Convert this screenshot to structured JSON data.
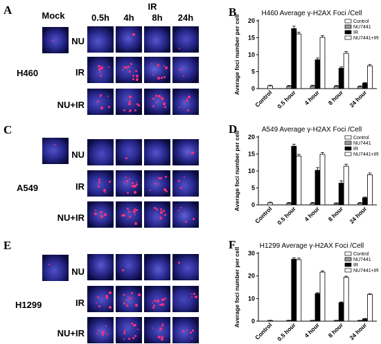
{
  "images": {
    "mock_header": "Mock",
    "ir_header": "IR",
    "time_headers": [
      "0.5h",
      "4h",
      "8h",
      "24h"
    ],
    "treatment_rows": [
      "NU",
      "IR",
      "NU+IR"
    ],
    "panels": [
      {
        "letter": "A",
        "cell_line": "H460"
      },
      {
        "letter": "C",
        "cell_line": "A549"
      },
      {
        "letter": "E",
        "cell_line": "H1299"
      }
    ]
  },
  "chart_data": [
    {
      "letter": "B",
      "type": "bar",
      "title": "H460 Average γ-H2AX Foci /Cell",
      "ylabel": "Average foci number per cell",
      "ylim": [
        0,
        20
      ],
      "yticks": [
        0,
        5,
        10,
        15,
        20
      ],
      "categories": [
        "Control",
        "0.5 hour",
        "4 hour",
        "8 hour",
        "24 hour"
      ],
      "legend": [
        "Control",
        "NU7441",
        "IR",
        "NU7441+IR"
      ],
      "series": [
        {
          "name": "Control",
          "values": [
            0.8,
            null,
            null,
            null,
            null
          ]
        },
        {
          "name": "NU7441",
          "values": [
            null,
            0.7,
            0.8,
            0.7,
            0.6
          ]
        },
        {
          "name": "IR",
          "values": [
            null,
            17.7,
            8.5,
            6.0,
            1.6
          ]
        },
        {
          "name": "NU7441+IR",
          "values": [
            null,
            16.1,
            15.1,
            10.4,
            6.7
          ]
        }
      ],
      "errors": [
        [
          0.2,
          null,
          null,
          null,
          null
        ],
        [
          null,
          0.2,
          0.2,
          0.2,
          0.2
        ],
        [
          null,
          0.7,
          0.5,
          0.4,
          0.2
        ],
        [
          null,
          0.5,
          0.5,
          0.5,
          0.4
        ]
      ]
    },
    {
      "letter": "D",
      "type": "bar",
      "title": "A549 Average γ-H2AX Foci /Cell",
      "ylabel": "Average foci number per cell",
      "ylim": [
        0,
        20
      ],
      "yticks": [
        0,
        5,
        10,
        15,
        20
      ],
      "categories": [
        "Control",
        "0.5 hour",
        "4 hour",
        "8 hour",
        "24 hour"
      ],
      "legend": [
        "Control",
        "NU7441",
        "IR",
        "NU7441+IR"
      ],
      "series": [
        {
          "name": "Control",
          "values": [
            0.6,
            null,
            null,
            null,
            null
          ]
        },
        {
          "name": "NU7441",
          "values": [
            null,
            0.5,
            0.5,
            0.4,
            0.5
          ]
        },
        {
          "name": "IR",
          "values": [
            null,
            17.3,
            10.2,
            6.4,
            2.1
          ]
        },
        {
          "name": "NU7441+IR",
          "values": [
            null,
            14.4,
            14.9,
            11.4,
            8.9
          ]
        }
      ],
      "errors": [
        [
          0.2,
          null,
          null,
          null,
          null
        ],
        [
          null,
          0.2,
          0.2,
          0.2,
          0.2
        ],
        [
          null,
          0.6,
          0.8,
          0.7,
          0.2
        ],
        [
          null,
          0.5,
          0.5,
          0.6,
          0.5
        ]
      ]
    },
    {
      "letter": "F",
      "type": "bar",
      "title": "H1299 Average γ-H2AX Foci /Cell",
      "ylabel": "Average foci number per cell",
      "ylim": [
        0,
        30
      ],
      "yticks": [
        0,
        10,
        20,
        30
      ],
      "categories": [
        "Control",
        "0.5 hour",
        "4 hour",
        "8 hour",
        "24 hour"
      ],
      "legend": [
        "Control",
        "NU7441",
        "IR",
        "NU7441+IR"
      ],
      "series": [
        {
          "name": "Control",
          "values": [
            0.3,
            null,
            null,
            null,
            null
          ]
        },
        {
          "name": "NU7441",
          "values": [
            null,
            0.3,
            0.3,
            0.3,
            0.3
          ]
        },
        {
          "name": "IR",
          "values": [
            null,
            27.4,
            12.2,
            8.2,
            1.0
          ]
        },
        {
          "name": "NU7441+IR",
          "values": [
            null,
            27.2,
            21.7,
            19.4,
            11.8
          ]
        }
      ],
      "errors": [
        [
          0.1,
          null,
          null,
          null,
          null
        ],
        [
          null,
          0.1,
          0.1,
          0.1,
          0.1
        ],
        [
          null,
          0.6,
          0.4,
          0.3,
          0.2
        ],
        [
          null,
          0.7,
          0.5,
          0.5,
          0.4
        ]
      ]
    }
  ]
}
